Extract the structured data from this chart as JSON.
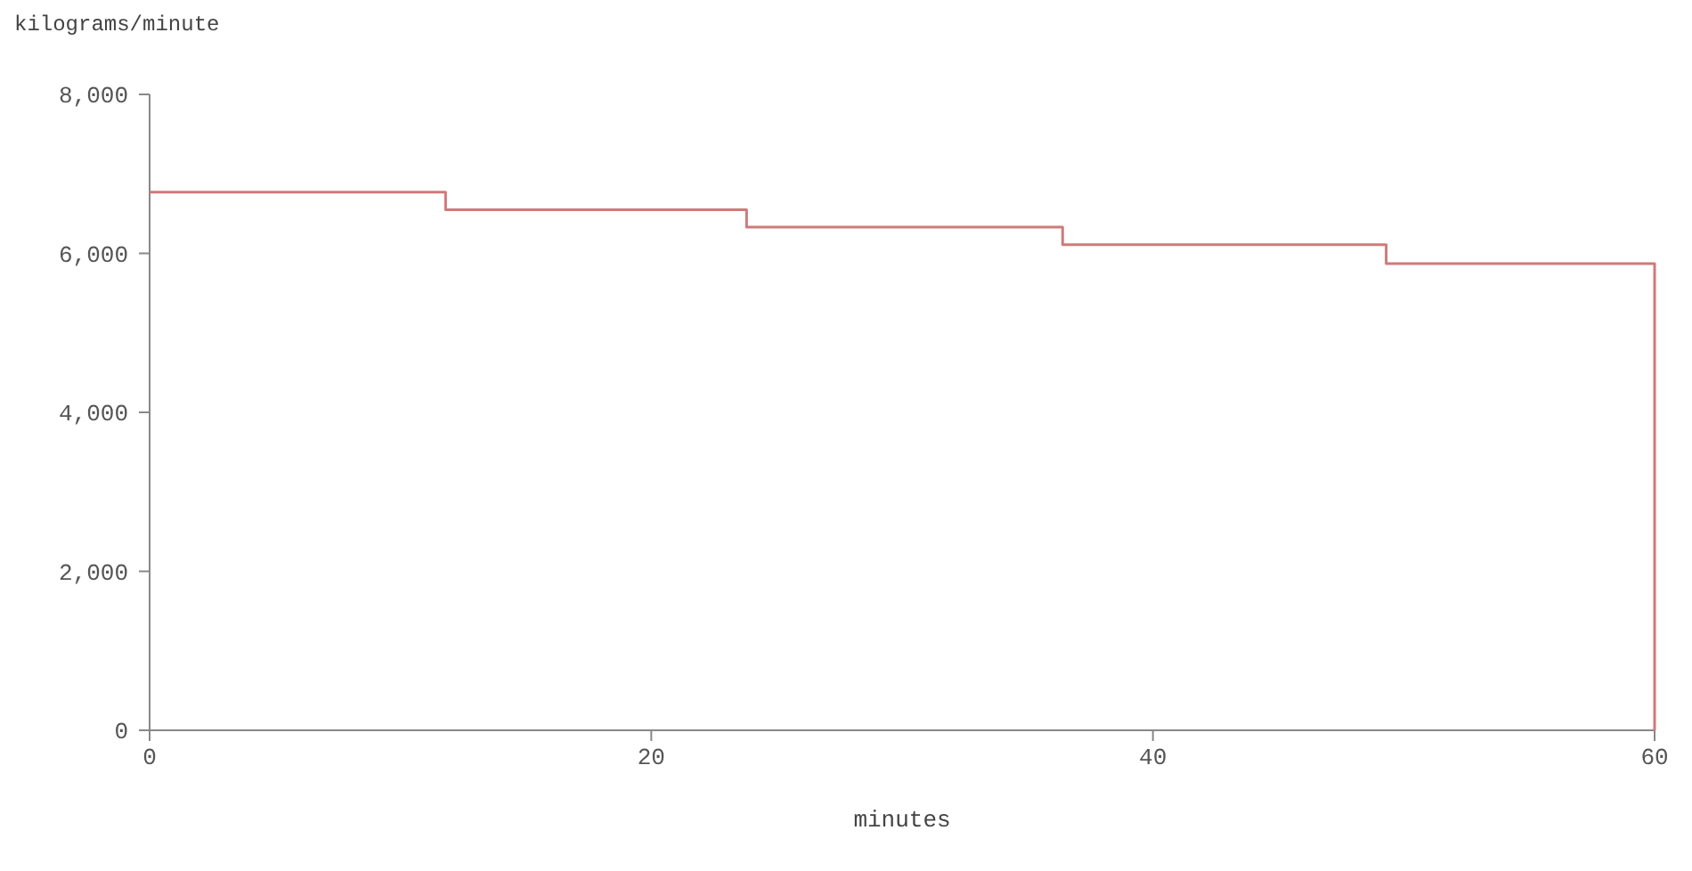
{
  "chart_data": {
    "type": "step",
    "ylabel": "kilograms/minute",
    "xlabel": "minutes",
    "x": [
      0,
      11.8,
      23.8,
      36.4,
      49.3,
      60,
      60
    ],
    "series": [
      {
        "color": "#d07a7a",
        "values": [
          6770,
          6550,
          6330,
          6110,
          5870,
          5870,
          0
        ]
      }
    ],
    "xlim": [
      0,
      60
    ],
    "xticks": [
      0,
      20,
      40,
      60
    ],
    "ylim": [
      0,
      8000
    ],
    "yticks": [
      {
        "value": 0,
        "label": "0"
      },
      {
        "value": 2000,
        "label": "2,000"
      },
      {
        "value": 4000,
        "label": "4,000"
      },
      {
        "value": 6000,
        "label": "6,000"
      },
      {
        "value": 8000,
        "label": "8,000"
      }
    ],
    "grid": false
  }
}
